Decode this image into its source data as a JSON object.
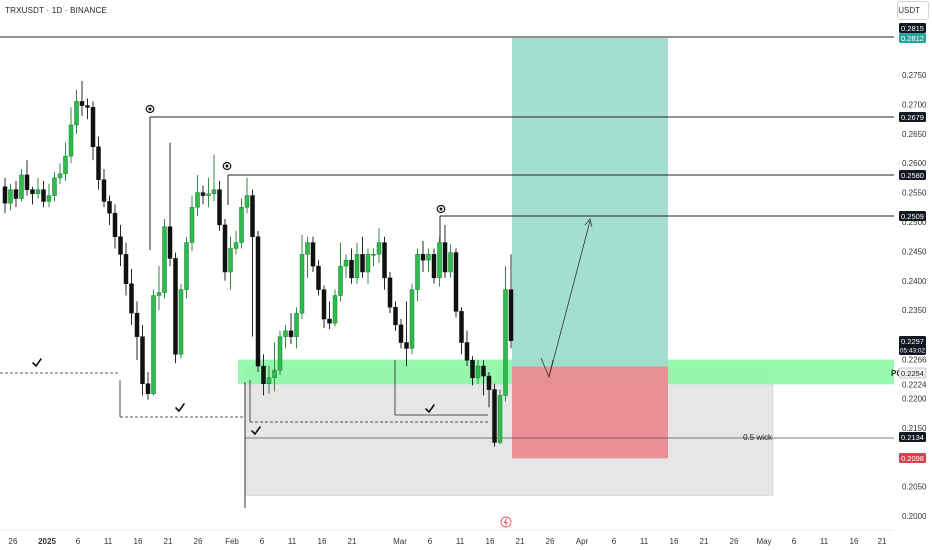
{
  "header": {
    "symbol": "TRXUSDT · 1D · BINANCE",
    "currency": "USDT"
  },
  "colors": {
    "up": "#26a69a",
    "up_fill": "#2dbb4b",
    "down": "#111111",
    "profit_zone": "#9fdccf",
    "loss_zone": "#ea8a8f",
    "poi_zone": "#8ef7a6",
    "gray_zone": "#e6e6e6",
    "tag_dark": "#131722",
    "tag_green": "#26a69a",
    "tag_red": "#d6434f"
  },
  "chart_data": {
    "type": "candlestick",
    "y_axis": {
      "min": 0.2,
      "max": 0.2815,
      "ticks": [
        "0.2750",
        "0.2700",
        "0.2650",
        "0.2600",
        "0.2550",
        "0.2500",
        "0.2450",
        "0.2400",
        "0.2350",
        "0.2266",
        "0.2224",
        "0.2200",
        "0.2150",
        "0.2050",
        "0.2000"
      ]
    },
    "x_axis": {
      "ticks": [
        "26",
        "2025",
        "6",
        "11",
        "16",
        "21",
        "26",
        "Feb",
        "6",
        "11",
        "16",
        "21",
        "Mar",
        "6",
        "11",
        "16",
        "21",
        "26",
        "Apr",
        "6",
        "11",
        "16",
        "21",
        "26",
        "May",
        "6",
        "11",
        "16",
        "21"
      ]
    },
    "price_tags": [
      {
        "value": "0.2815",
        "style": "dark"
      },
      {
        "value": "0.2812",
        "style": "green"
      },
      {
        "value": "0.2679",
        "style": "dark"
      },
      {
        "value": "0.2580",
        "style": "dark"
      },
      {
        "value": "0.2509",
        "style": "dark"
      },
      {
        "value": "0.2297",
        "style": "dark",
        "subtext": "05:43:02"
      },
      {
        "value": "0.2254",
        "style": "gray"
      },
      {
        "value": "0.2134",
        "style": "dark"
      },
      {
        "value": "0.2098",
        "style": "red"
      }
    ],
    "annotations": {
      "wick_label": "0.5 wick",
      "poi_label": "PO"
    },
    "candles": [
      [
        0.256,
        0.2532,
        0.2575,
        0.2515
      ],
      [
        0.2532,
        0.2555,
        0.2565,
        0.252
      ],
      [
        0.2555,
        0.254,
        0.257,
        0.2525
      ],
      [
        0.254,
        0.258,
        0.259,
        0.2535
      ],
      [
        0.258,
        0.2555,
        0.2605,
        0.2545
      ],
      [
        0.2555,
        0.2548,
        0.256,
        0.253
      ],
      [
        0.2548,
        0.2555,
        0.2575,
        0.254
      ],
      [
        0.2555,
        0.2535,
        0.257,
        0.2525
      ],
      [
        0.2535,
        0.2545,
        0.2565,
        0.2525
      ],
      [
        0.2545,
        0.2575,
        0.2585,
        0.2535
      ],
      [
        0.2575,
        0.2582,
        0.26,
        0.2565
      ],
      [
        0.2582,
        0.2612,
        0.2635,
        0.257
      ],
      [
        0.2612,
        0.2665,
        0.2695,
        0.26
      ],
      [
        0.2665,
        0.2705,
        0.2725,
        0.265
      ],
      [
        0.2705,
        0.2698,
        0.274,
        0.268
      ],
      [
        0.2698,
        0.2695,
        0.271,
        0.2675
      ],
      [
        0.2695,
        0.2628,
        0.2705,
        0.2605
      ],
      [
        0.2628,
        0.2572,
        0.2645,
        0.2555
      ],
      [
        0.2572,
        0.2535,
        0.259,
        0.2525
      ],
      [
        0.2535,
        0.2515,
        0.2545,
        0.2495
      ],
      [
        0.2515,
        0.2475,
        0.253,
        0.2455
      ],
      [
        0.2475,
        0.2445,
        0.2495,
        0.2425
      ],
      [
        0.2445,
        0.2395,
        0.2465,
        0.2375
      ],
      [
        0.2395,
        0.2345,
        0.242,
        0.2325
      ],
      [
        0.2345,
        0.2305,
        0.2365,
        0.2265
      ],
      [
        0.2305,
        0.2225,
        0.2325,
        0.2205
      ],
      [
        0.2225,
        0.2208,
        0.2245,
        0.2198
      ],
      [
        0.2208,
        0.2375,
        0.2385,
        0.2205
      ],
      [
        0.2375,
        0.238,
        0.2425,
        0.235
      ],
      [
        0.238,
        0.2492,
        0.2505,
        0.237
      ],
      [
        0.2492,
        0.2438,
        0.2635,
        0.2425
      ],
      [
        0.2438,
        0.2275,
        0.2448,
        0.226
      ],
      [
        0.2275,
        0.2385,
        0.2395,
        0.2268
      ],
      [
        0.2385,
        0.2465,
        0.2475,
        0.237
      ],
      [
        0.2465,
        0.2525,
        0.2545,
        0.245
      ],
      [
        0.2525,
        0.255,
        0.258,
        0.251
      ],
      [
        0.255,
        0.2545,
        0.2562,
        0.253
      ],
      [
        0.2545,
        0.2548,
        0.2575,
        0.2525
      ],
      [
        0.2548,
        0.2555,
        0.2615,
        0.2535
      ],
      [
        0.2555,
        0.2495,
        0.257,
        0.2485
      ],
      [
        0.2495,
        0.2415,
        0.2505,
        0.24
      ],
      [
        0.2415,
        0.2455,
        0.2475,
        0.2385
      ],
      [
        0.2455,
        0.2465,
        0.2485,
        0.2445
      ],
      [
        0.2465,
        0.2525,
        0.254,
        0.2455
      ],
      [
        0.2525,
        0.2545,
        0.2575,
        0.2515
      ],
      [
        0.2545,
        0.2475,
        0.2555,
        0.2305
      ],
      [
        0.2475,
        0.2255,
        0.2485,
        0.2245
      ],
      [
        0.2255,
        0.2225,
        0.2275,
        0.2205
      ],
      [
        0.2225,
        0.2235,
        0.2255,
        0.2208
      ],
      [
        0.2235,
        0.2248,
        0.2295,
        0.2212
      ],
      [
        0.2248,
        0.2305,
        0.2315,
        0.224
      ],
      [
        0.2305,
        0.2315,
        0.2325,
        0.2285
      ],
      [
        0.2315,
        0.2305,
        0.2345,
        0.2292
      ],
      [
        0.2305,
        0.2345,
        0.2355,
        0.2285
      ],
      [
        0.2345,
        0.2445,
        0.2478,
        0.2335
      ],
      [
        0.2445,
        0.2465,
        0.2475,
        0.2405
      ],
      [
        0.2465,
        0.2425,
        0.2475,
        0.2415
      ],
      [
        0.2425,
        0.2385,
        0.2435,
        0.2375
      ],
      [
        0.2385,
        0.2335,
        0.2392,
        0.232
      ],
      [
        0.2335,
        0.2328,
        0.2365,
        0.2318
      ],
      [
        0.2328,
        0.2375,
        0.2385,
        0.2322
      ],
      [
        0.2375,
        0.2425,
        0.2465,
        0.2365
      ],
      [
        0.2425,
        0.2435,
        0.2445,
        0.2405
      ],
      [
        0.2435,
        0.2405,
        0.2455,
        0.2395
      ],
      [
        0.2405,
        0.2445,
        0.2465,
        0.2395
      ],
      [
        0.2445,
        0.2415,
        0.2475,
        0.2405
      ],
      [
        0.2415,
        0.2445,
        0.2455,
        0.2395
      ],
      [
        0.2445,
        0.2445,
        0.2455,
        0.2425
      ],
      [
        0.2445,
        0.2465,
        0.249,
        0.243
      ],
      [
        0.2465,
        0.2405,
        0.2475,
        0.2385
      ],
      [
        0.2405,
        0.2355,
        0.2415,
        0.2345
      ],
      [
        0.2355,
        0.2325,
        0.2365,
        0.2315
      ],
      [
        0.2325,
        0.2295,
        0.2335,
        0.2285
      ],
      [
        0.2295,
        0.2285,
        0.2365,
        0.2255
      ],
      [
        0.2285,
        0.2385,
        0.2395,
        0.2275
      ],
      [
        0.2385,
        0.2445,
        0.2455,
        0.2365
      ],
      [
        0.2445,
        0.2435,
        0.2468,
        0.2415
      ],
      [
        0.2435,
        0.2445,
        0.2455,
        0.2415
      ],
      [
        0.2445,
        0.2405,
        0.2455,
        0.2395
      ],
      [
        0.2405,
        0.2465,
        0.2475,
        0.239
      ],
      [
        0.2465,
        0.2415,
        0.2495,
        0.2405
      ],
      [
        0.2415,
        0.2448,
        0.2462,
        0.2405
      ],
      [
        0.2448,
        0.2348,
        0.2455,
        0.2338
      ],
      [
        0.2348,
        0.2295,
        0.2355,
        0.2275
      ],
      [
        0.2295,
        0.2265,
        0.2315,
        0.2255
      ],
      [
        0.2265,
        0.2235,
        0.2272,
        0.2222
      ],
      [
        0.2235,
        0.2255,
        0.2265,
        0.2225
      ],
      [
        0.2255,
        0.2238,
        0.2265,
        0.2205
      ],
      [
        0.2238,
        0.2215,
        0.2245,
        0.2185
      ],
      [
        0.2215,
        0.2125,
        0.2225,
        0.2118
      ],
      [
        0.2125,
        0.2205,
        0.2215,
        0.2122
      ],
      [
        0.2205,
        0.2385,
        0.2425,
        0.2195
      ],
      [
        0.2385,
        0.2298,
        0.2445,
        0.2285
      ]
    ]
  }
}
